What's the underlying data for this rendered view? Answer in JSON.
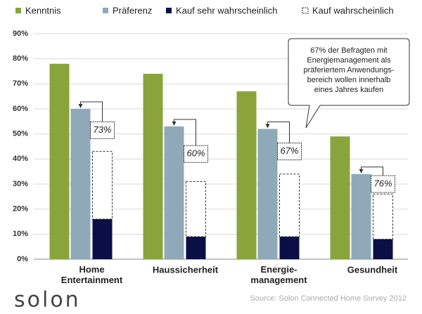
{
  "chart_data": {
    "type": "bar",
    "categories": [
      "Home\nEntertainment",
      "Haussicherheit",
      "Energie-\nmanagement",
      "Gesundheit"
    ],
    "series": [
      {
        "name": "Kenntnis",
        "color": "#8aa43c",
        "values": [
          78,
          74,
          67,
          49
        ]
      },
      {
        "name": "Präferenz",
        "color": "#8fa9b8",
        "values": [
          60,
          53,
          52,
          34
        ]
      },
      {
        "name": "Kauf sehr wahrscheinlich",
        "color": "#0b0f45",
        "values": [
          16,
          9,
          9,
          8
        ]
      },
      {
        "name": "Kauf wahrscheinlich",
        "color": "#ffffff",
        "values": [
          27,
          22,
          25,
          18
        ]
      }
    ],
    "ylim": [
      0,
      90
    ],
    "yticks": [
      {
        "value": 0,
        "label": "0%"
      },
      {
        "value": 10,
        "label": "10%"
      },
      {
        "value": 20,
        "label": "20%"
      },
      {
        "value": 30,
        "label": "30%"
      },
      {
        "value": 40,
        "label": "40%"
      },
      {
        "value": 50,
        "label": "50%"
      },
      {
        "value": 60,
        "label": "60%"
      },
      {
        "value": 70,
        "label": "70%"
      },
      {
        "value": 80,
        "label": "80%"
      },
      {
        "value": 90,
        "label": "90%"
      }
    ],
    "grid": true,
    "annotations": [
      "73%",
      "60%",
      "67%",
      "76%"
    ],
    "callout": "67% der Befragten mit\nEnergiemanagement als\npräferiertem Anwendungs-\nbereich wollen innerhalb\neines Jahres kaufen",
    "source": "Source: Solon Connected Home Survey 2012",
    "logo": "solon"
  }
}
